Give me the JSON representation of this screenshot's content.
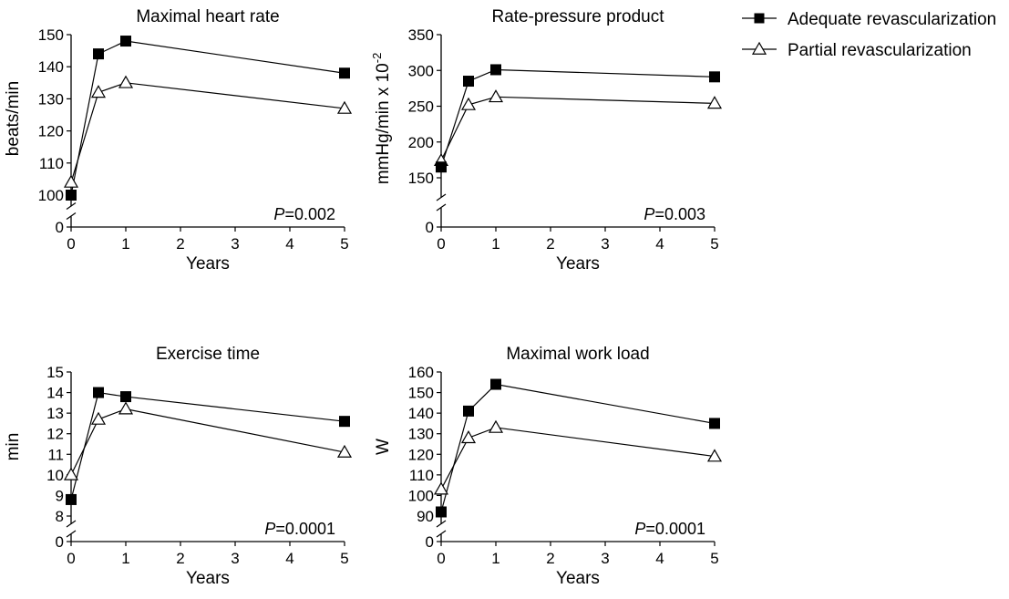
{
  "legend": [
    {
      "key": "adequate",
      "label": "Adequate revascularization",
      "marker": "square-filled"
    },
    {
      "key": "partial",
      "label": "Partial revascularization",
      "marker": "triangle-open"
    }
  ],
  "chart_data": [
    {
      "type": "line",
      "title": "Maximal heart rate",
      "xlabel": "Years",
      "ylabel": "beats/min",
      "ylabel_superscript": "",
      "x_ticks": [
        0,
        1,
        2,
        3,
        4,
        5
      ],
      "y_ticks": [
        100,
        110,
        120,
        130,
        140,
        150
      ],
      "ylim": [
        100,
        150
      ],
      "y_break": true,
      "x": [
        0,
        0.5,
        1,
        5
      ],
      "series": [
        {
          "name": "Adequate revascularization",
          "values": [
            100,
            144,
            148,
            138
          ]
        },
        {
          "name": "Partial revascularization",
          "values": [
            104,
            132,
            135,
            127
          ]
        }
      ],
      "p_prefix": "P",
      "p_value": "=0.002"
    },
    {
      "type": "line",
      "title": "Rate-pressure product",
      "xlabel": "Years",
      "ylabel": "mmHg/min x 10",
      "ylabel_superscript": "-2",
      "x_ticks": [
        0,
        1,
        2,
        3,
        4,
        5
      ],
      "y_ticks": [
        150,
        200,
        250,
        300,
        350
      ],
      "ylim": [
        150,
        350
      ],
      "y_break": true,
      "x": [
        0,
        0.5,
        1,
        5
      ],
      "series": [
        {
          "name": "Adequate revascularization",
          "values": [
            165,
            285,
            301,
            291
          ]
        },
        {
          "name": "Partial revascularization",
          "values": [
            174,
            252,
            263,
            254
          ]
        }
      ],
      "p_prefix": "P",
      "p_value": "=0.003"
    },
    {
      "type": "line",
      "title": "Exercise time",
      "xlabel": "Years",
      "ylabel": "min",
      "ylabel_superscript": "",
      "x_ticks": [
        0,
        1,
        2,
        3,
        4,
        5
      ],
      "y_ticks": [
        8,
        9,
        10,
        11,
        12,
        13,
        14,
        15
      ],
      "ylim": [
        8,
        15
      ],
      "y_break": true,
      "x": [
        0,
        0.5,
        1,
        5
      ],
      "series": [
        {
          "name": "Adequate revascularization",
          "values": [
            8.8,
            14.0,
            13.8,
            12.6
          ]
        },
        {
          "name": "Partial revascularization",
          "values": [
            10.0,
            12.7,
            13.2,
            11.1
          ]
        }
      ],
      "p_prefix": "P",
      "p_value": "=0.0001"
    },
    {
      "type": "line",
      "title": "Maximal work load",
      "xlabel": "Years",
      "ylabel": "W",
      "ylabel_superscript": "",
      "x_ticks": [
        0,
        1,
        2,
        3,
        4,
        5
      ],
      "y_ticks": [
        90,
        100,
        110,
        120,
        130,
        140,
        150,
        160
      ],
      "ylim": [
        90,
        160
      ],
      "y_break": true,
      "x": [
        0,
        0.5,
        1,
        5
      ],
      "series": [
        {
          "name": "Adequate revascularization",
          "values": [
            92,
            141,
            154,
            135
          ]
        },
        {
          "name": "Partial revascularization",
          "values": [
            103,
            128,
            133,
            119
          ]
        }
      ],
      "p_prefix": "P",
      "p_value": "=0.0001"
    }
  ]
}
